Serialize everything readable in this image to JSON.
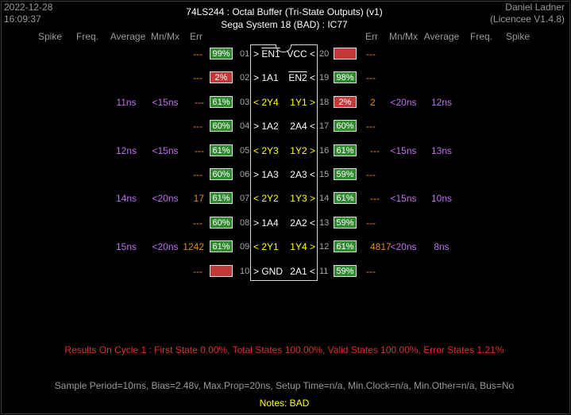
{
  "header": {
    "date": "2022-12-28",
    "time": "16:09:37",
    "title": "74LS244 :  Octal Buffer (Tri-State Outputs) (v1)",
    "subtitle": "Sega System 18 (BAD) : IC77",
    "author": "Daniel Ladner",
    "licence": "(Licencee V1.4.8)"
  },
  "columns": {
    "left": [
      "Spike",
      "Freq.",
      "Average",
      "Mn/Mx",
      "Err"
    ],
    "right": [
      "Err",
      "Mn/Mx",
      "Average",
      "Freq.",
      "Spike"
    ]
  },
  "rows": [
    {
      "lpin": "01",
      "lname": "> EN1",
      "lover": "EN1",
      "lpre": "> ",
      "lcolor": "white",
      "rpin": "20",
      "rname": "VCC <",
      "rcolor": "white",
      "lerr": "---",
      "lbadge": "99%",
      "lbg": "green",
      "rbadge": "",
      "rbg": "redbg",
      "rerr": "---",
      "lavg": "",
      "lmnmx": "",
      "lerrcnt": "",
      "ravg": "",
      "rmnmx": "",
      "rerrcnt": ""
    },
    {
      "lpin": "02",
      "lname": "> 1A1",
      "lcolor": "white",
      "rpin": "19",
      "rname": "EN2 <",
      "rover": "EN2",
      "rpost": " <",
      "rcolor": "white",
      "lerr": "---",
      "lbadge": "2%",
      "lbg": "redbg",
      "rbadge": "98%",
      "rbg": "green",
      "rerr": "---",
      "lavg": "",
      "lmnmx": "",
      "lerrcnt": "",
      "ravg": "",
      "rmnmx": "",
      "rerrcnt": ""
    },
    {
      "lpin": "03",
      "lname": "< 2Y4",
      "lcolor": "yellow",
      "rpin": "18",
      "rname": "1Y1 >",
      "rcolor": "yellow",
      "lerr": "",
      "lbadge": "61%",
      "lbg": "green",
      "rbadge": "2%",
      "rbg": "redbg",
      "rerr": "",
      "lavg": "11ns",
      "lmnmx": "<15ns",
      "lerrcnt": "---",
      "ravg": "12ns",
      "rmnmx": "<20ns",
      "rerrcnt": "2"
    },
    {
      "lpin": "04",
      "lname": "> 1A2",
      "lcolor": "white",
      "rpin": "17",
      "rname": "2A4 <",
      "rcolor": "white",
      "lerr": "---",
      "lbadge": "60%",
      "lbg": "green",
      "rbadge": "60%",
      "rbg": "green",
      "rerr": "---",
      "lavg": "",
      "lmnmx": "",
      "lerrcnt": "",
      "ravg": "",
      "rmnmx": "",
      "rerrcnt": ""
    },
    {
      "lpin": "05",
      "lname": "< 2Y3",
      "lcolor": "yellow",
      "rpin": "16",
      "rname": "1Y2 >",
      "rcolor": "yellow",
      "lerr": "",
      "lbadge": "61%",
      "lbg": "green",
      "rbadge": "61%",
      "rbg": "green",
      "rerr": "",
      "lavg": "12ns",
      "lmnmx": "<15ns",
      "lerrcnt": "---",
      "ravg": "13ns",
      "rmnmx": "<15ns",
      "rerrcnt": "---"
    },
    {
      "lpin": "06",
      "lname": "> 1A3",
      "lcolor": "white",
      "rpin": "15",
      "rname": "2A3 <",
      "rcolor": "white",
      "lerr": "---",
      "lbadge": "60%",
      "lbg": "green",
      "rbadge": "59%",
      "rbg": "green",
      "rerr": "---",
      "lavg": "",
      "lmnmx": "",
      "lerrcnt": "",
      "ravg": "",
      "rmnmx": "",
      "rerrcnt": ""
    },
    {
      "lpin": "07",
      "lname": "< 2Y2",
      "lcolor": "yellow",
      "rpin": "14",
      "rname": "1Y3 >",
      "rcolor": "yellow",
      "lerr": "",
      "lbadge": "61%",
      "lbg": "green",
      "rbadge": "61%",
      "rbg": "green",
      "rerr": "",
      "lavg": "14ns",
      "lmnmx": "<20ns",
      "lerrcnt": "17",
      "ravg": "10ns",
      "rmnmx": "<15ns",
      "rerrcnt": "---"
    },
    {
      "lpin": "08",
      "lname": "> 1A4",
      "lcolor": "white",
      "rpin": "13",
      "rname": "2A2 <",
      "rcolor": "white",
      "lerr": "---",
      "lbadge": "60%",
      "lbg": "green",
      "rbadge": "59%",
      "rbg": "green",
      "rerr": "---",
      "lavg": "",
      "lmnmx": "",
      "lerrcnt": "",
      "ravg": "",
      "rmnmx": "",
      "rerrcnt": ""
    },
    {
      "lpin": "09",
      "lname": "< 2Y1",
      "lcolor": "yellow",
      "rpin": "12",
      "rname": "1Y4 >",
      "rcolor": "yellow",
      "lerr": "",
      "lbadge": "61%",
      "lbg": "green",
      "rbadge": "61%",
      "rbg": "green",
      "rerr": "",
      "lavg": "15ns",
      "lmnmx": "<20ns",
      "lerrcnt": "1242",
      "ravg": "8ns",
      "rmnmx": "<20ns",
      "rerrcnt": "4817"
    },
    {
      "lpin": "10",
      "lname": "> GND",
      "lcolor": "white",
      "rpin": "11",
      "rname": "2A1 <",
      "rcolor": "white",
      "lerr": "---",
      "lbadge": "",
      "lbg": "redbg",
      "rbadge": "59%",
      "rbg": "green",
      "rerr": "---",
      "lavg": "",
      "lmnmx": "",
      "lerrcnt": "",
      "ravg": "",
      "rmnmx": "",
      "rerrcnt": ""
    }
  ],
  "results": "Results On Cycle 1  :  First State 0.00%,  Total States 100.00%,  Valid States 100.00%,  Error States 1.21%",
  "sample": "Sample Period=10ms,  Bias=2.48v,  Max.Prop=20ns,  Setup Time=n/a,  Min.Clock=n/a,  Min.Other=n/a,  Bus=No",
  "notes": "Notes:  BAD",
  "colors": {
    "pass_green": "#2e8b2e",
    "fail_red": "#c03a3a",
    "input_white": "#ffffff",
    "output_yellow": "#ffff00",
    "timing_purple": "#c070f0",
    "count_orange": "#e08a1e",
    "results_red": "#e03030"
  }
}
